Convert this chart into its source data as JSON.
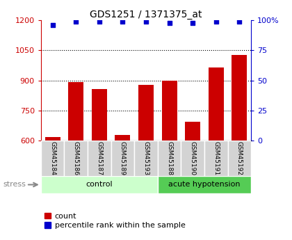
{
  "title": "GDS1251 / 1371375_at",
  "samples": [
    "GSM45184",
    "GSM45186",
    "GSM45187",
    "GSM45189",
    "GSM45193",
    "GSM45188",
    "GSM45190",
    "GSM45191",
    "GSM45192"
  ],
  "counts": [
    618,
    893,
    858,
    628,
    878,
    898,
    693,
    963,
    1028
  ],
  "percentiles": [
    96,
    99,
    99,
    99,
    99,
    98,
    98,
    99,
    99
  ],
  "groups": [
    {
      "label": "control",
      "start": 0,
      "end": 5,
      "color": "#ccffcc"
    },
    {
      "label": "acute hypotension",
      "start": 5,
      "end": 9,
      "color": "#55cc55"
    }
  ],
  "bar_color": "#cc0000",
  "dot_color": "#0000cc",
  "ylim_left": [
    600,
    1200
  ],
  "ylim_right": [
    0,
    100
  ],
  "yticks_left": [
    600,
    750,
    900,
    1050,
    1200
  ],
  "yticks_right": [
    0,
    25,
    50,
    75,
    100
  ],
  "grid_values": [
    750,
    900,
    1050
  ],
  "left_axis_color": "#cc0000",
  "right_axis_color": "#0000cc",
  "legend_count_label": "count",
  "legend_percentile_label": "percentile rank within the sample",
  "stress_label": "stress",
  "bar_width": 0.65
}
